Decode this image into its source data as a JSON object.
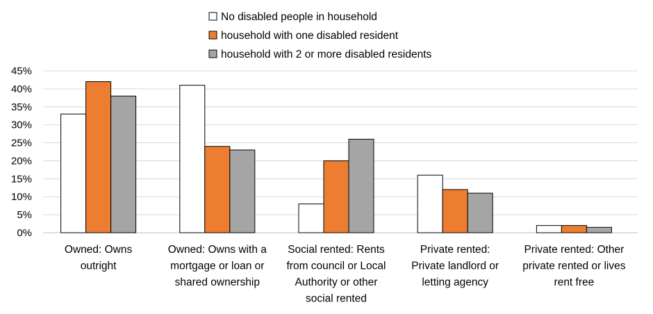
{
  "chart_data": {
    "type": "bar",
    "categories": [
      [
        "Owned: Owns",
        "outright"
      ],
      [
        "Owned: Owns with a",
        "mortgage or loan or",
        "shared ownership"
      ],
      [
        "Social rented: Rents",
        "from council or Local",
        "Authority or other",
        "social rented"
      ],
      [
        "Private rented:",
        "Private landlord or",
        "letting agency"
      ],
      [
        "Private rented: Other",
        "private rented or lives",
        "rent free"
      ]
    ],
    "series": [
      {
        "name": "No disabled people in household",
        "color": "#ffffff",
        "values": [
          33,
          41,
          8,
          16,
          2
        ]
      },
      {
        "name": "household with one disabled resident",
        "color": "#ed7d31",
        "values": [
          42,
          24,
          20,
          12,
          2
        ]
      },
      {
        "name": "household with 2 or more disabled residents",
        "color": "#a5a5a5",
        "values": [
          38,
          23,
          26,
          11,
          1.5
        ]
      }
    ],
    "y_ticks": [
      "0%",
      "5%",
      "10%",
      "15%",
      "20%",
      "25%",
      "30%",
      "35%",
      "40%",
      "45%"
    ],
    "ylim": [
      0,
      45
    ],
    "grid": true,
    "legend_position": "top"
  }
}
